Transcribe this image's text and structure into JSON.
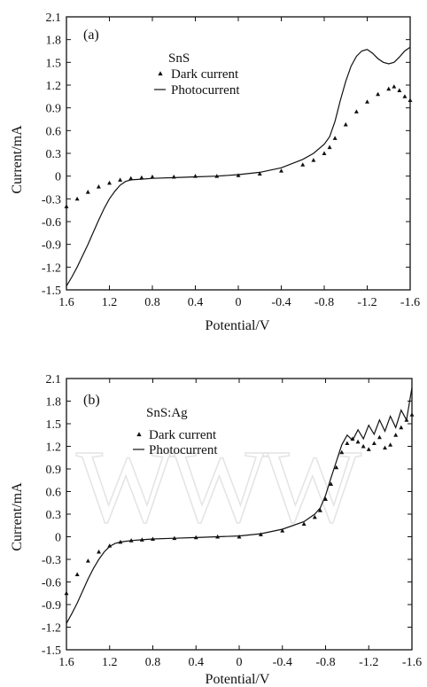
{
  "chart_data": [
    {
      "type": "line",
      "panel_label": "(a)",
      "legend_title": "SnS",
      "xlabel": "Potential/V",
      "ylabel": "Current/mA",
      "xlim": [
        1.6,
        -1.6
      ],
      "ylim": [
        -1.5,
        2.1
      ],
      "xticks": [
        "1.6",
        "1.2",
        "0.8",
        "0.4",
        "0",
        "-0.4",
        "-0.8",
        "-1.2",
        "-1.6"
      ],
      "yticks": [
        "2.1",
        "1.8",
        "1.5",
        "1.2",
        "0.9",
        "0.6",
        "0.3",
        "0",
        "-0.3",
        "-0.6",
        "-0.9",
        "-1.2",
        "-1.5"
      ],
      "series": [
        {
          "name": "Dark current",
          "marker": "triangle",
          "x": [
            1.6,
            1.5,
            1.4,
            1.3,
            1.2,
            1.1,
            1.0,
            0.9,
            0.8,
            0.6,
            0.4,
            0.2,
            0.0,
            -0.2,
            -0.4,
            -0.6,
            -0.7,
            -0.8,
            -0.85,
            -0.9,
            -1.0,
            -1.1,
            -1.2,
            -1.3,
            -1.4,
            -1.45,
            -1.5,
            -1.55,
            -1.6
          ],
          "y": [
            -0.4,
            -0.3,
            -0.21,
            -0.14,
            -0.09,
            -0.05,
            -0.03,
            -0.02,
            -0.01,
            -0.01,
            0.0,
            0.0,
            0.01,
            0.03,
            0.07,
            0.15,
            0.21,
            0.3,
            0.38,
            0.5,
            0.68,
            0.85,
            0.98,
            1.08,
            1.15,
            1.18,
            1.13,
            1.05,
            1.0
          ]
        },
        {
          "name": "Photocurrent",
          "marker": "line",
          "x": [
            1.6,
            1.55,
            1.5,
            1.45,
            1.4,
            1.35,
            1.3,
            1.25,
            1.2,
            1.15,
            1.1,
            1.05,
            1.0,
            0.9,
            0.8,
            0.6,
            0.4,
            0.2,
            0.0,
            -0.2,
            -0.4,
            -0.6,
            -0.7,
            -0.8,
            -0.85,
            -0.9,
            -0.95,
            -1.0,
            -1.05,
            -1.1,
            -1.15,
            -1.2,
            -1.25,
            -1.3,
            -1.35,
            -1.4,
            -1.45,
            -1.5,
            -1.55,
            -1.6
          ],
          "y": [
            -1.45,
            -1.33,
            -1.2,
            -1.05,
            -0.9,
            -0.74,
            -0.58,
            -0.43,
            -0.3,
            -0.2,
            -0.12,
            -0.07,
            -0.05,
            -0.04,
            -0.03,
            -0.02,
            -0.01,
            0.0,
            0.02,
            0.05,
            0.11,
            0.22,
            0.3,
            0.42,
            0.52,
            0.72,
            1.0,
            1.25,
            1.45,
            1.58,
            1.65,
            1.67,
            1.62,
            1.55,
            1.5,
            1.48,
            1.5,
            1.57,
            1.65,
            1.7
          ]
        }
      ]
    },
    {
      "type": "line",
      "panel_label": "(b)",
      "legend_title": "SnS:Ag",
      "xlabel": "Potential/V",
      "ylabel": "Current/mA",
      "xlim": [
        1.6,
        -1.6
      ],
      "ylim": [
        -1.5,
        2.1
      ],
      "xticks": [
        "1.6",
        "1.2",
        "0.8",
        "0.4",
        "0",
        "-0.4",
        "-0.8",
        "-1.2",
        "-1.6"
      ],
      "yticks": [
        "2.1",
        "1.8",
        "1.5",
        "1.2",
        "0.9",
        "0.6",
        "0.3",
        "0",
        "-0.3",
        "-0.6",
        "-0.9",
        "-1.2",
        "-1.5"
      ],
      "series": [
        {
          "name": "Dark current",
          "marker": "triangle",
          "x": [
            1.6,
            1.5,
            1.4,
            1.3,
            1.2,
            1.1,
            1.0,
            0.9,
            0.8,
            0.6,
            0.4,
            0.2,
            0.0,
            -0.2,
            -0.4,
            -0.6,
            -0.7,
            -0.75,
            -0.8,
            -0.85,
            -0.9,
            -0.95,
            -1.0,
            -1.05,
            -1.1,
            -1.15,
            -1.2,
            -1.25,
            -1.3,
            -1.35,
            -1.4,
            -1.45,
            -1.5,
            -1.55,
            -1.6
          ],
          "y": [
            -0.75,
            -0.5,
            -0.32,
            -0.2,
            -0.12,
            -0.07,
            -0.05,
            -0.04,
            -0.03,
            -0.02,
            -0.01,
            0.0,
            0.0,
            0.03,
            0.08,
            0.17,
            0.26,
            0.35,
            0.5,
            0.7,
            0.92,
            1.12,
            1.24,
            1.3,
            1.26,
            1.2,
            1.16,
            1.24,
            1.32,
            1.18,
            1.22,
            1.35,
            1.45,
            1.55,
            1.62
          ]
        },
        {
          "name": "Photocurrent",
          "marker": "line",
          "x": [
            1.6,
            1.55,
            1.5,
            1.45,
            1.4,
            1.35,
            1.3,
            1.25,
            1.2,
            1.15,
            1.1,
            1.05,
            1.0,
            0.9,
            0.8,
            0.6,
            0.4,
            0.2,
            0.0,
            -0.2,
            -0.4,
            -0.6,
            -0.7,
            -0.75,
            -0.8,
            -0.85,
            -0.9,
            -0.95,
            -1.0,
            -1.05,
            -1.1,
            -1.15,
            -1.2,
            -1.25,
            -1.3,
            -1.35,
            -1.4,
            -1.45,
            -1.5,
            -1.55,
            -1.6
          ],
          "y": [
            -1.15,
            -1.02,
            -0.88,
            -0.72,
            -0.56,
            -0.42,
            -0.3,
            -0.2,
            -0.13,
            -0.09,
            -0.07,
            -0.06,
            -0.05,
            -0.04,
            -0.03,
            -0.02,
            -0.01,
            0.0,
            0.01,
            0.04,
            0.1,
            0.2,
            0.3,
            0.38,
            0.55,
            0.78,
            1.0,
            1.22,
            1.35,
            1.28,
            1.42,
            1.3,
            1.48,
            1.36,
            1.55,
            1.4,
            1.6,
            1.45,
            1.68,
            1.55,
            1.98
          ]
        }
      ]
    }
  ],
  "watermark": {
    "text": "WWW"
  }
}
